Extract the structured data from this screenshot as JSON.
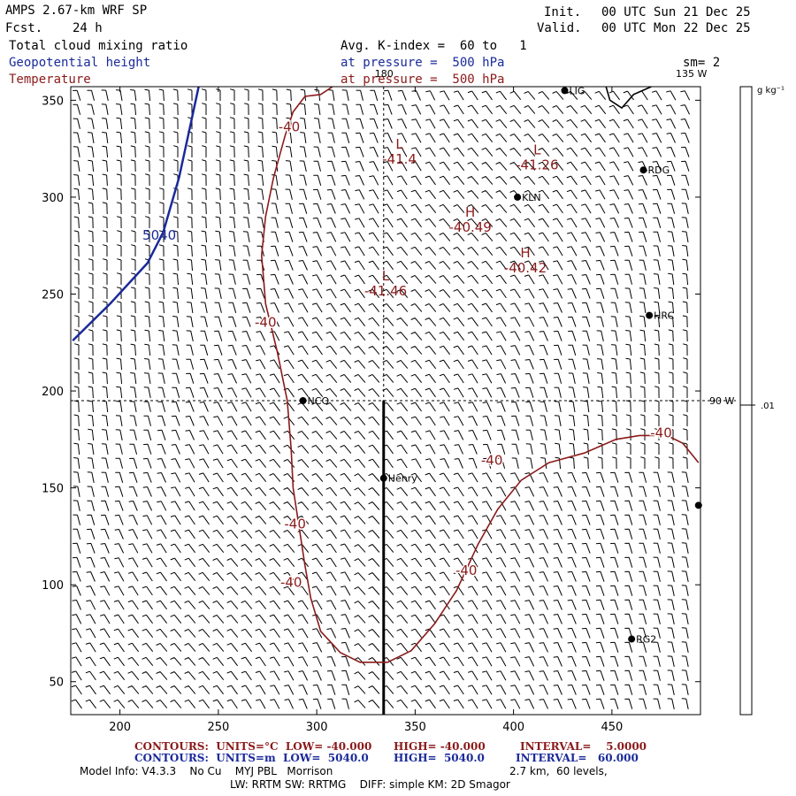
{
  "header": {
    "model": "AMPS 2.67-km WRF SP",
    "fcst_label": "Fcst.",
    "fcst_value": "24 h",
    "init_label": "Init.",
    "init_value": "00 UTC Sun 21 Dec 25",
    "valid_label": "Valid.",
    "valid_value": "00 UTC Mon 22 Dec 25",
    "field1": "Total cloud mixing ratio",
    "field2": "Geopotential height",
    "field3": "Temperature",
    "avg_line": "Avg. K-index =  60 to   1",
    "pressure_line1": "at pressure =  500 hPa",
    "pressure_line2": "at pressure =  500 hPa",
    "smoothing": "sm= 2"
  },
  "axes": {
    "x_ticks": [
      200,
      250,
      300,
      350,
      400,
      450
    ],
    "x_labels": [
      "200",
      "250",
      "300",
      "350",
      "400",
      "450"
    ],
    "x_range": [
      175,
      495
    ],
    "y_ticks": [
      50,
      100,
      150,
      200,
      250,
      300,
      350
    ],
    "y_labels": [
      "50",
      "100",
      "150",
      "200",
      "250",
      "300",
      "350"
    ],
    "y_range": [
      33,
      357
    ]
  },
  "meridians": {
    "label_180": "180",
    "label_135w": "135 W",
    "label_90w": "90 W"
  },
  "colorbar": {
    "unit": "g kg⁻¹",
    "tick_label": ".01"
  },
  "stations": [
    {
      "name": "LIG",
      "x": 426,
      "y": 355
    },
    {
      "name": "RDG",
      "x": 466,
      "y": 314
    },
    {
      "name": "KLN",
      "x": 402,
      "y": 300
    },
    {
      "name": "HRC",
      "x": 469,
      "y": 239
    },
    {
      "name": "NCO",
      "x": 293,
      "y": 195
    },
    {
      "name": "Henry",
      "x": 334,
      "y": 155
    },
    {
      "name": "RG2",
      "x": 460,
      "y": 72
    },
    {
      "name": "",
      "x": 494,
      "y": 141
    }
  ],
  "temperature_extrema": [
    {
      "symbol": "L",
      "value": "-41.4",
      "x": 342,
      "y": 325
    },
    {
      "symbol": "L",
      "value": "-41.26",
      "x": 412,
      "y": 322
    },
    {
      "symbol": "H",
      "value": "-40.49",
      "x": 378,
      "y": 290
    },
    {
      "symbol": "H",
      "value": "-40.42",
      "x": 406,
      "y": 269
    },
    {
      "symbol": "L",
      "value": "-41.46",
      "x": 335,
      "y": 257
    }
  ],
  "temperature_contour_labels": [
    {
      "text": "-40",
      "x": 286,
      "y": 334
    },
    {
      "text": "-40",
      "x": 274,
      "y": 233
    },
    {
      "text": "-40",
      "x": 289,
      "y": 129
    },
    {
      "text": "-40",
      "x": 287,
      "y": 99
    },
    {
      "text": "-40",
      "x": 376,
      "y": 105
    },
    {
      "text": "-40",
      "x": 389,
      "y": 162
    },
    {
      "text": "-40",
      "x": 475,
      "y": 176
    }
  ],
  "height_contour_labels": [
    {
      "text": "5040",
      "x": 220,
      "y": 278
    }
  ],
  "cross_section_line": {
    "x": 334,
    "y_from": 33,
    "y_to": 195
  },
  "footer": {
    "temp_contours": "CONTOURS:  UNITS=°C  LOW= -40.000",
    "temp_high": "HIGH= -40.000",
    "temp_interval": "INTERVAL=    5.0000",
    "height_contours": "CONTOURS:  UNITS=m  LOW=  5040.0",
    "height_high": "HIGH=  5040.0",
    "height_interval": "INTERVAL=   60.000",
    "model_info": "Model Info: V4.3.3    No Cu    MYJ PBL   Morrison",
    "grid_info": "2.7 km,  60 levels,",
    "physics_info": "LW: RRTM SW: RRTMG    DIFF: simple KM: 2D Smagor"
  },
  "colors": {
    "temperature": "#8b1a1a",
    "height": "#1a2a9a",
    "barbs": "#000000"
  }
}
